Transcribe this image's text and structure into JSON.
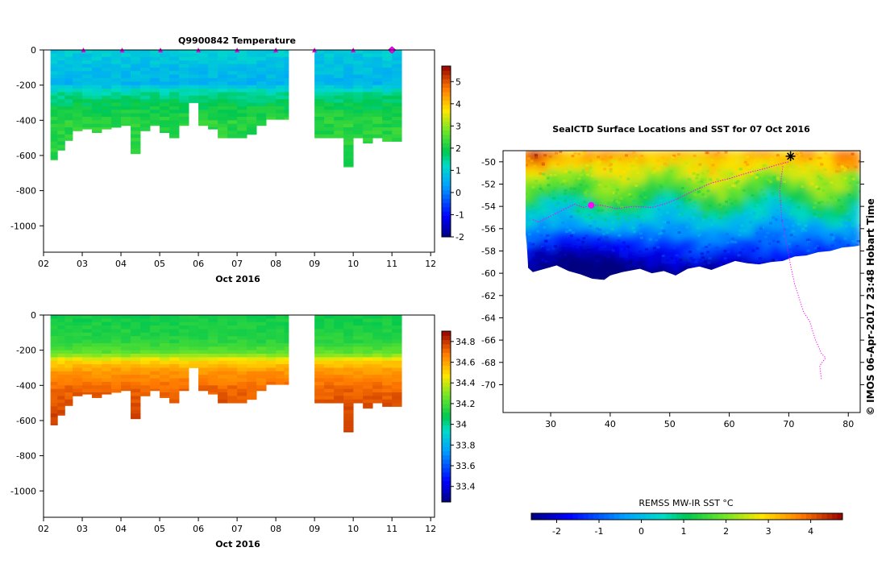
{
  "chart_data": [
    {
      "type": "heatmap",
      "id": "temperature",
      "title": "Q9900842  Temperature",
      "xlabel": "Oct 2016",
      "ylabel": "",
      "xlim": [
        2,
        12.1
      ],
      "ylim": [
        -1150,
        0
      ],
      "xticks": [
        "02",
        "03",
        "04",
        "05",
        "06",
        "07",
        "08",
        "09",
        "10",
        "11",
        "12"
      ],
      "yticks": [
        0,
        -200,
        -400,
        -600,
        -800,
        -1000
      ],
      "colorbar": {
        "min": -2,
        "max": 5.7,
        "ticks": [
          -2,
          -1,
          0,
          1,
          2,
          3,
          4,
          5
        ]
      },
      "profile_markers_x": [
        3.03,
        4.03,
        5.02,
        6.0,
        7.0,
        8.0,
        9.0,
        10.0,
        11.0
      ],
      "latest_marker_x": 11.0,
      "profiles": [
        {
          "x": 2.18,
          "depth": 625
        },
        {
          "x": 2.36,
          "depth": 570
        },
        {
          "x": 2.55,
          "depth": 515
        },
        {
          "x": 2.75,
          "depth": 460
        },
        {
          "x": 3.0,
          "depth": 450
        },
        {
          "x": 3.25,
          "depth": 470
        },
        {
          "x": 3.5,
          "depth": 450
        },
        {
          "x": 3.75,
          "depth": 440
        },
        {
          "x": 4.0,
          "depth": 430
        },
        {
          "x": 4.25,
          "depth": 590
        },
        {
          "x": 4.5,
          "depth": 460
        },
        {
          "x": 4.75,
          "depth": 430
        },
        {
          "x": 5.0,
          "depth": 470
        },
        {
          "x": 5.25,
          "depth": 500
        },
        {
          "x": 5.5,
          "depth": 430
        },
        {
          "x": 5.75,
          "depth": 300
        },
        {
          "x": 6.0,
          "depth": 430
        },
        {
          "x": 6.25,
          "depth": 450
        },
        {
          "x": 6.5,
          "depth": 500
        },
        {
          "x": 6.75,
          "depth": 500
        },
        {
          "x": 7.0,
          "depth": 500
        },
        {
          "x": 7.25,
          "depth": 480
        },
        {
          "x": 7.5,
          "depth": 430
        },
        {
          "x": 7.75,
          "depth": 395
        },
        {
          "x": 8.0,
          "depth": 395
        },
        {
          "x": 8.22,
          "depth": 395
        },
        {
          "x": 9.0,
          "depth": 500
        },
        {
          "x": 9.25,
          "depth": 500
        },
        {
          "x": 9.5,
          "depth": 500
        },
        {
          "x": 9.75,
          "depth": 665
        },
        {
          "x": 10.0,
          "depth": 500
        },
        {
          "x": 10.25,
          "depth": 530
        },
        {
          "x": 10.5,
          "depth": 500
        },
        {
          "x": 10.75,
          "depth": 520
        },
        {
          "x": 11.0,
          "depth": 520
        }
      ],
      "gap": [
        8.33,
        9.0
      ],
      "last_x": 11.25,
      "layers": [
        {
          "z": 0,
          "v": 1.0
        },
        {
          "z": 120,
          "v": 0.75
        },
        {
          "z": 190,
          "v": 0.6
        },
        {
          "z": 250,
          "v": 1.5
        },
        {
          "z": 300,
          "v": 1.8
        },
        {
          "z": 400,
          "v": 2.2
        },
        {
          "z": 700,
          "v": 2.1
        }
      ]
    },
    {
      "type": "heatmap",
      "id": "salinity",
      "title": "",
      "xlabel": "Oct 2016",
      "ylabel": "",
      "xlim": [
        2,
        12.1
      ],
      "ylim": [
        -1150,
        0
      ],
      "xticks": [
        "02",
        "03",
        "04",
        "05",
        "06",
        "07",
        "08",
        "09",
        "10",
        "11",
        "12"
      ],
      "yticks": [
        0,
        -200,
        -400,
        -600,
        -800,
        -1000
      ],
      "colorbar": {
        "min": 33.25,
        "max": 34.9,
        "ticks": [
          33.4,
          33.6,
          33.8,
          34,
          34.2,
          34.4,
          34.6,
          34.8
        ]
      },
      "layers": [
        {
          "z": 0,
          "v": 34.1
        },
        {
          "z": 150,
          "v": 34.15
        },
        {
          "z": 220,
          "v": 34.25
        },
        {
          "z": 260,
          "v": 34.5
        },
        {
          "z": 320,
          "v": 34.62
        },
        {
          "z": 420,
          "v": 34.72
        },
        {
          "z": 700,
          "v": 34.82
        }
      ]
    },
    {
      "type": "heatmap",
      "id": "sst-map",
      "title": "SealCTD Surface Locations and SST for 07 Oct 2016",
      "xlabel": "",
      "ylabel": "",
      "xlim": [
        22,
        82
      ],
      "ylim": [
        -72.5,
        -49
      ],
      "xticks": [
        30,
        40,
        50,
        60,
        70,
        80
      ],
      "yticks": [
        -50,
        -52,
        -54,
        -56,
        -58,
        -60,
        -62,
        -64,
        -66,
        -68,
        -70
      ],
      "colorbar": {
        "label": "REMSS MW-IR SST °C",
        "min": -2.6,
        "max": 4.75,
        "ticks": [
          -2,
          -1,
          0,
          1,
          2,
          3,
          4
        ]
      },
      "current_location": [
        36.8,
        -53.9
      ]
    }
  ],
  "credit": "©  IMOS 06-Apr-2017 23:48 Hobart Time"
}
